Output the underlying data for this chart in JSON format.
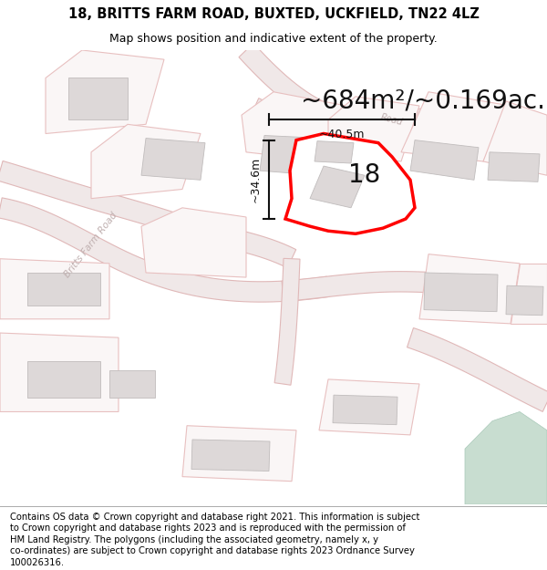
{
  "title_line1": "18, BRITTS FARM ROAD, BUXTED, UCKFIELD, TN22 4LZ",
  "title_line2": "Map shows position and indicative extent of the property.",
  "area_label": "~684m²/~0.169ac.",
  "dim_vertical": "~34.6m",
  "dim_horizontal": "~40.5m",
  "property_number": "18",
  "map_bg": "#f5f0f0",
  "white_bg": "#ffffff",
  "road_fill": "#f0e8e8",
  "road_outline": "#e0b8b8",
  "building_fill": "#ddd8d8",
  "building_outline": "#c0bcbc",
  "parcel_outline": "#e8c0c0",
  "parcel_fill": "#faf6f6",
  "property_fill": "#ffffff",
  "property_outline": "#ff0000",
  "dim_color": "#111111",
  "label_color": "#c0b0b0",
  "green_color": "#c8ddd0",
  "title_fontsize": 10.5,
  "subtitle_fontsize": 9,
  "area_fontsize": 20,
  "dim_fontsize": 9,
  "number_fontsize": 20,
  "footer_fontsize": 7.2,
  "footer_lines": [
    "Contains OS data © Crown copyright and database right 2021. This information is subject",
    "to Crown copyright and database rights 2023 and is reproduced with the permission of",
    "HM Land Registry. The polygons (including the associated geometry, namely x, y",
    "co-ordinates) are subject to Crown copyright and database rights 2023 Ordnance Survey",
    "100026316."
  ]
}
